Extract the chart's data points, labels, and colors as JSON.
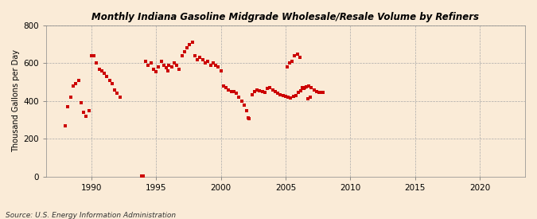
{
  "title": "Monthly Indiana Gasoline Midgrade Wholesale/Resale Volume by Refiners",
  "ylabel": "Thousand Gallons per Day",
  "source": "Source: U.S. Energy Information Administration",
  "background_color": "#faebd7",
  "marker_color": "#cc0000",
  "ylim": [
    0,
    800
  ],
  "yticks": [
    0,
    200,
    400,
    600,
    800
  ],
  "xlim_start": 1986.5,
  "xlim_end": 2023.5,
  "xticks": [
    1990,
    1995,
    2000,
    2005,
    2010,
    2015,
    2020
  ],
  "data": [
    [
      1988.0,
      270
    ],
    [
      1988.2,
      370
    ],
    [
      1988.4,
      420
    ],
    [
      1988.6,
      480
    ],
    [
      1988.8,
      490
    ],
    [
      1989.0,
      510
    ],
    [
      1989.2,
      390
    ],
    [
      1989.4,
      340
    ],
    [
      1989.6,
      320
    ],
    [
      1989.8,
      350
    ],
    [
      1990.0,
      640
    ],
    [
      1990.2,
      640
    ],
    [
      1990.4,
      600
    ],
    [
      1990.6,
      570
    ],
    [
      1990.8,
      560
    ],
    [
      1991.0,
      545
    ],
    [
      1991.2,
      530
    ],
    [
      1991.4,
      510
    ],
    [
      1991.6,
      490
    ],
    [
      1991.8,
      460
    ],
    [
      1992.0,
      440
    ],
    [
      1992.2,
      420
    ],
    [
      1993.9,
      5
    ],
    [
      1994.0,
      5
    ],
    [
      1994.2,
      610
    ],
    [
      1994.4,
      590
    ],
    [
      1994.6,
      600
    ],
    [
      1994.8,
      570
    ],
    [
      1995.0,
      555
    ],
    [
      1995.2,
      580
    ],
    [
      1995.4,
      610
    ],
    [
      1995.6,
      590
    ],
    [
      1995.8,
      575
    ],
    [
      1995.9,
      560
    ],
    [
      1996.0,
      590
    ],
    [
      1996.2,
      580
    ],
    [
      1996.4,
      600
    ],
    [
      1996.6,
      590
    ],
    [
      1996.8,
      570
    ],
    [
      1997.0,
      640
    ],
    [
      1997.2,
      660
    ],
    [
      1997.4,
      680
    ],
    [
      1997.6,
      700
    ],
    [
      1997.8,
      710
    ],
    [
      1998.0,
      640
    ],
    [
      1998.2,
      620
    ],
    [
      1998.4,
      630
    ],
    [
      1998.6,
      620
    ],
    [
      1998.8,
      600
    ],
    [
      1999.0,
      610
    ],
    [
      1999.2,
      590
    ],
    [
      1999.4,
      600
    ],
    [
      1999.6,
      590
    ],
    [
      1999.8,
      580
    ],
    [
      2000.0,
      560
    ],
    [
      2000.2,
      480
    ],
    [
      2000.4,
      470
    ],
    [
      2000.6,
      460
    ],
    [
      2000.8,
      450
    ],
    [
      2001.0,
      450
    ],
    [
      2001.2,
      440
    ],
    [
      2001.4,
      420
    ],
    [
      2001.6,
      400
    ],
    [
      2001.8,
      380
    ],
    [
      2002.0,
      350
    ],
    [
      2002.1,
      310
    ],
    [
      2002.2,
      305
    ],
    [
      2002.4,
      435
    ],
    [
      2002.6,
      450
    ],
    [
      2002.8,
      460
    ],
    [
      2003.0,
      455
    ],
    [
      2003.2,
      450
    ],
    [
      2003.4,
      445
    ],
    [
      2003.6,
      465
    ],
    [
      2003.8,
      470
    ],
    [
      2004.0,
      460
    ],
    [
      2004.2,
      450
    ],
    [
      2004.4,
      440
    ],
    [
      2004.6,
      435
    ],
    [
      2004.8,
      430
    ],
    [
      2005.0,
      425
    ],
    [
      2005.2,
      420
    ],
    [
      2005.4,
      415
    ],
    [
      2005.6,
      425
    ],
    [
      2005.8,
      430
    ],
    [
      2006.0,
      445
    ],
    [
      2006.2,
      455
    ],
    [
      2006.4,
      465
    ],
    [
      2006.5,
      470
    ],
    [
      2006.6,
      475
    ],
    [
      2006.8,
      480
    ],
    [
      2007.0,
      470
    ],
    [
      2007.2,
      460
    ],
    [
      2007.4,
      450
    ],
    [
      2007.6,
      445
    ],
    [
      2007.8,
      445
    ],
    [
      2007.9,
      445
    ],
    [
      2005.1,
      580
    ],
    [
      2005.3,
      600
    ],
    [
      2005.5,
      610
    ],
    [
      2005.7,
      640
    ],
    [
      2005.9,
      650
    ],
    [
      2006.1,
      630
    ],
    [
      2006.3,
      470
    ],
    [
      2006.7,
      410
    ],
    [
      2006.9,
      420
    ]
  ]
}
